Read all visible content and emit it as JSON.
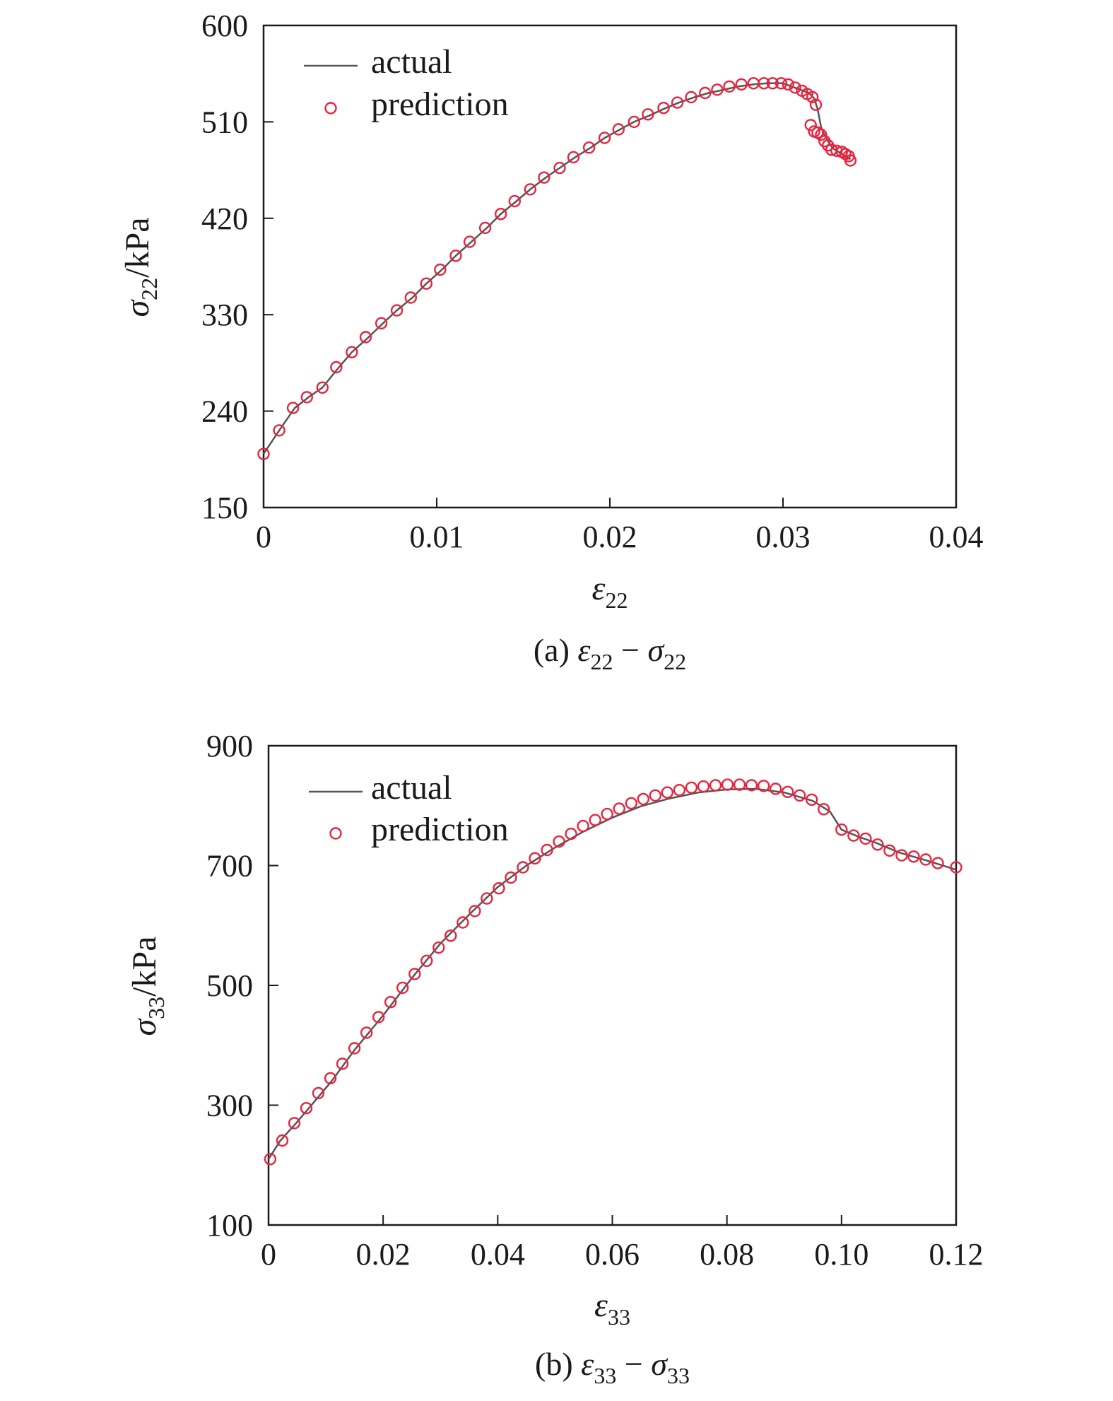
{
  "chart_data": [
    {
      "type": "line",
      "caption": {
        "prefix": "(a) ",
        "x_sym": "ε",
        "x_sub": "22",
        "sep": " − ",
        "y_sym": "σ",
        "y_sub": "22"
      },
      "xlabel": {
        "sym": "ε",
        "sub": "22"
      },
      "ylabel": {
        "sym": "σ",
        "sub": "22",
        "unit": "/kPa"
      },
      "xlim": [
        0,
        0.04
      ],
      "ylim": [
        150,
        600
      ],
      "xticks": [
        0,
        0.01,
        0.02,
        0.03,
        0.04
      ],
      "xtick_labels": [
        "0",
        "0.01",
        "0.02",
        "0.03",
        "0.04"
      ],
      "yticks": [
        150,
        240,
        330,
        420,
        510,
        600
      ],
      "ytick_labels": [
        "150",
        "240",
        "330",
        "420",
        "510",
        "600"
      ],
      "legend": {
        "placement": "top-left",
        "entries": [
          "actual",
          "prediction"
        ]
      },
      "grid": false,
      "series": [
        {
          "name": "actual",
          "style": "line",
          "color": "#555555",
          "x": [
            0,
            0.0009,
            0.0018,
            0.0026,
            0.0034,
            0.0043,
            0.0051,
            0.006,
            0.0069,
            0.0077,
            0.0086,
            0.0094,
            0.0103,
            0.0111,
            0.012,
            0.0129,
            0.0137,
            0.0146,
            0.0154,
            0.0163,
            0.0171,
            0.018,
            0.0189,
            0.0197,
            0.0206,
            0.0214,
            0.0223,
            0.0231,
            0.024,
            0.0249,
            0.0257,
            0.0266,
            0.0274,
            0.0283,
            0.0291,
            0.03,
            0.0305,
            0.031,
            0.0315,
            0.0318,
            0.032,
            0.0322,
            0.0324,
            0.0326,
            0.0328,
            0.033,
            0.0333,
            0.0336,
            0.0339
          ],
          "y": [
            200,
            222,
            243,
            253,
            262,
            280,
            295,
            308,
            322,
            334,
            346,
            359,
            372,
            385,
            398,
            411,
            424,
            436,
            447,
            458,
            467,
            477,
            486,
            495,
            503,
            510,
            516,
            522,
            528,
            533,
            537,
            540,
            543,
            545,
            546,
            546,
            543,
            540,
            537,
            532,
            522,
            505,
            498,
            492,
            487,
            484,
            481,
            478,
            475
          ]
        },
        {
          "name": "prediction",
          "style": "marker",
          "color": "#e8243f",
          "x": [
            0,
            0.0009,
            0.0017,
            0.0025,
            0.0034,
            0.0042,
            0.0051,
            0.0059,
            0.0068,
            0.0077,
            0.0085,
            0.0094,
            0.0102,
            0.0111,
            0.0119,
            0.0128,
            0.0137,
            0.0145,
            0.0154,
            0.0162,
            0.0171,
            0.0179,
            0.0188,
            0.0197,
            0.0205,
            0.0214,
            0.0222,
            0.0231,
            0.0239,
            0.0247,
            0.0255,
            0.0262,
            0.0269,
            0.0276,
            0.0283,
            0.0289,
            0.0294,
            0.0299,
            0.0303,
            0.0307,
            0.0311,
            0.0314,
            0.0317,
            0.0319,
            0.0316,
            0.0318,
            0.032,
            0.0322,
            0.0324,
            0.0326,
            0.0328,
            0.0331,
            0.0334,
            0.0336,
            0.0338,
            0.0339
          ],
          "y": [
            200,
            222,
            243,
            253,
            262,
            281,
            295,
            309,
            322,
            334,
            346,
            359,
            372,
            385,
            398,
            411,
            424,
            436,
            447,
            458,
            467,
            477,
            486,
            495,
            503,
            510,
            517,
            523,
            528,
            533,
            537,
            540,
            543,
            545,
            546,
            546,
            546,
            546,
            545,
            542,
            539,
            536,
            533,
            526,
            507,
            501,
            500,
            498,
            492,
            488,
            484,
            483,
            482,
            480,
            478,
            474
          ]
        }
      ]
    },
    {
      "type": "line",
      "caption": {
        "prefix": "(b) ",
        "x_sym": "ε",
        "x_sub": "33",
        "sep": " − ",
        "y_sym": "σ",
        "y_sub": "33"
      },
      "xlabel": {
        "sym": "ε",
        "sub": "33"
      },
      "ylabel": {
        "sym": "σ",
        "sub": "33",
        "unit": "/kPa"
      },
      "xlim": [
        0,
        0.12
      ],
      "ylim": [
        100,
        900
      ],
      "xticks": [
        0,
        0.02,
        0.04,
        0.06,
        0.08,
        0.1,
        0.12
      ],
      "xtick_labels": [
        "0",
        "0.02",
        "0.04",
        "0.06",
        "0.08",
        "0.10",
        "0.12"
      ],
      "yticks": [
        100,
        300,
        500,
        700,
        900
      ],
      "ytick_labels": [
        "100",
        "300",
        "500",
        "700",
        "900"
      ],
      "legend": {
        "placement": "top-left",
        "entries": [
          "actual",
          "prediction"
        ]
      },
      "grid": false,
      "series": [
        {
          "name": "actual",
          "style": "line",
          "color": "#555555",
          "x": [
            0,
            0.002,
            0.005,
            0.008,
            0.011,
            0.015,
            0.02,
            0.025,
            0.03,
            0.035,
            0.04,
            0.045,
            0.05,
            0.055,
            0.06,
            0.065,
            0.07,
            0.075,
            0.08,
            0.085,
            0.09,
            0.095,
            0.098,
            0.1,
            0.103,
            0.106,
            0.11,
            0.115,
            0.12
          ],
          "y": [
            210,
            240,
            272,
            306,
            340,
            392,
            450,
            512,
            570,
            618,
            664,
            700,
            730,
            757,
            780,
            799,
            812,
            822,
            827,
            828,
            822,
            808,
            790,
            760,
            748,
            738,
            722,
            708,
            693
          ]
        },
        {
          "name": "prediction",
          "style": "marker",
          "color": "#e8243f",
          "x": [
            0.0003,
            0.0024,
            0.0045,
            0.0066,
            0.0087,
            0.0108,
            0.0129,
            0.015,
            0.0171,
            0.0192,
            0.0213,
            0.0234,
            0.0255,
            0.0276,
            0.0297,
            0.0318,
            0.0339,
            0.036,
            0.0381,
            0.0402,
            0.0423,
            0.0444,
            0.0465,
            0.0486,
            0.0507,
            0.0528,
            0.0549,
            0.057,
            0.0591,
            0.0612,
            0.0633,
            0.0654,
            0.0675,
            0.0696,
            0.0717,
            0.0738,
            0.0759,
            0.078,
            0.0801,
            0.0822,
            0.0843,
            0.0864,
            0.0885,
            0.0906,
            0.0927,
            0.0948,
            0.0969,
            0.1,
            0.1021,
            0.1042,
            0.1063,
            0.1084,
            0.1105,
            0.1126,
            0.1147,
            0.1168,
            0.12
          ],
          "y": [
            210,
            241,
            270,
            295,
            320,
            345,
            369,
            395,
            421,
            447,
            472,
            496,
            519,
            541,
            563,
            583,
            605,
            624,
            645,
            662,
            680,
            697,
            712,
            726,
            740,
            753,
            766,
            776,
            786,
            795,
            804,
            811,
            817,
            822,
            826,
            830,
            832,
            834,
            835,
            835,
            834,
            833,
            828,
            823,
            817,
            810,
            794,
            760,
            750,
            745,
            735,
            725,
            717,
            715,
            710,
            704,
            697
          ]
        }
      ]
    }
  ]
}
